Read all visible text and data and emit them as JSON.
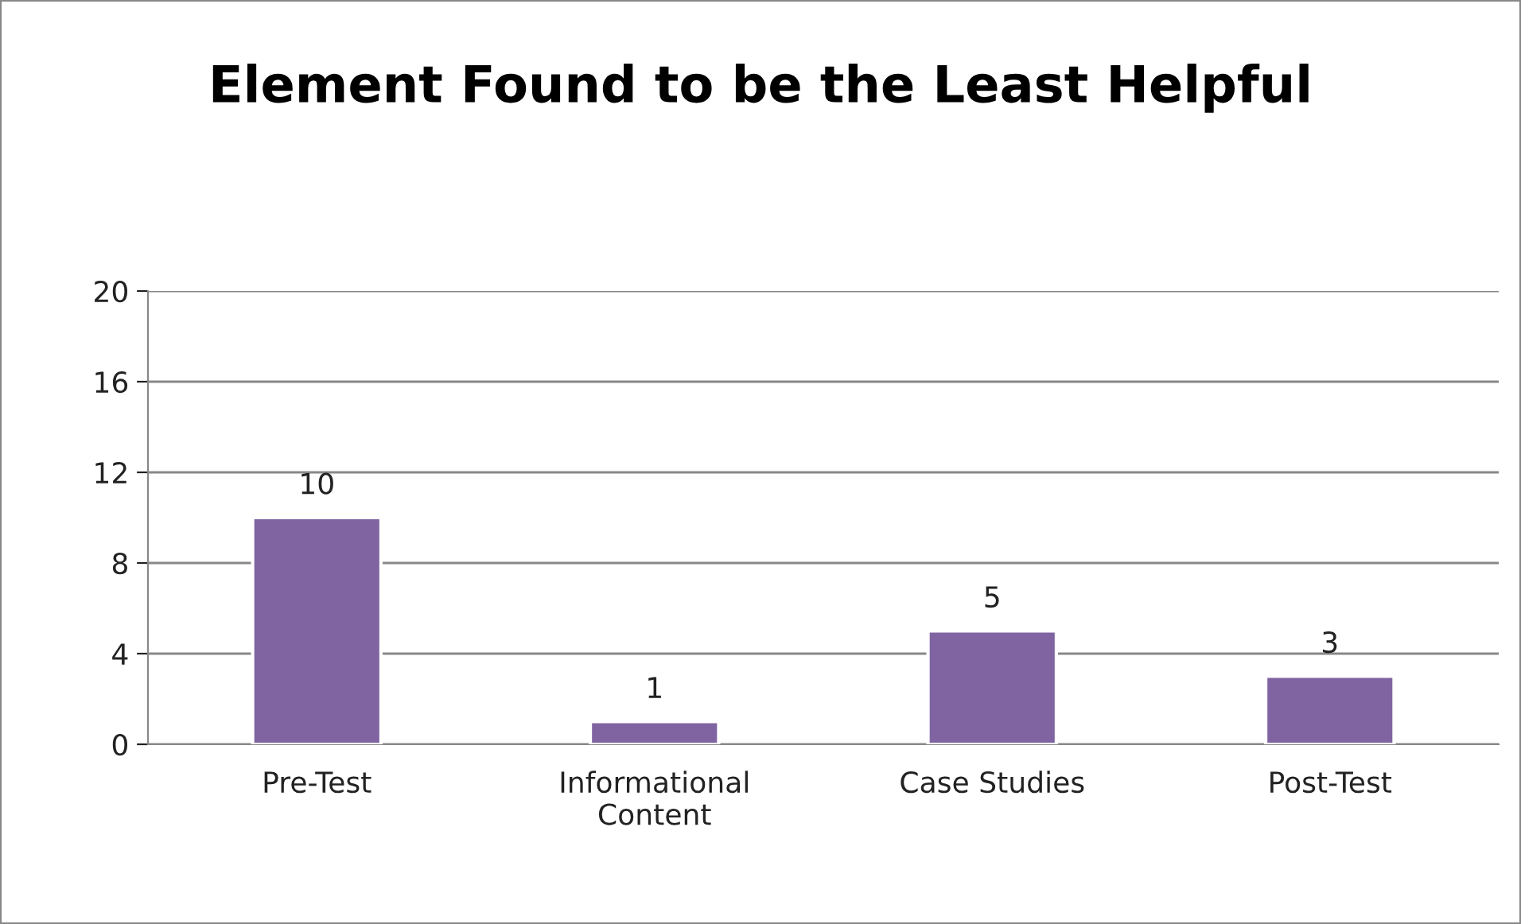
{
  "chart_data": {
    "type": "bar",
    "title": "Element Found to be the Least Helpful",
    "categories": [
      "Pre-Test",
      "Informational\nContent",
      "Case Studies",
      "Post-Test"
    ],
    "values": [
      10,
      1,
      5,
      3
    ],
    "color": "#8064a2",
    "ylim": [
      0,
      20
    ],
    "yticks": [
      0,
      4,
      8,
      12,
      16,
      20
    ],
    "grid": "y",
    "data_labels": true
  }
}
